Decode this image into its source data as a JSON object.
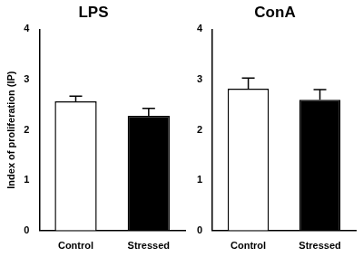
{
  "chart_data": [
    {
      "type": "bar",
      "title": "LPS",
      "y_label": "Index of proliferation (IP)",
      "categories": [
        "Control",
        "Stressed"
      ],
      "values": [
        2.57,
        2.28
      ],
      "errors": [
        0.1,
        0.15
      ],
      "colors": [
        "#ffffff",
        "#000000"
      ],
      "ylim": [
        0,
        4
      ],
      "yticks": [
        0,
        1,
        2,
        3,
        4
      ],
      "grid": false
    },
    {
      "type": "bar",
      "title": "ConA",
      "categories": [
        "Control",
        "Stressed"
      ],
      "values": [
        2.82,
        2.6
      ],
      "errors": [
        0.21,
        0.2
      ],
      "colors": [
        "#ffffff",
        "#000000"
      ],
      "ylim": [
        0,
        4
      ],
      "yticks": [
        0,
        1,
        2,
        3,
        4
      ],
      "grid": false
    }
  ]
}
